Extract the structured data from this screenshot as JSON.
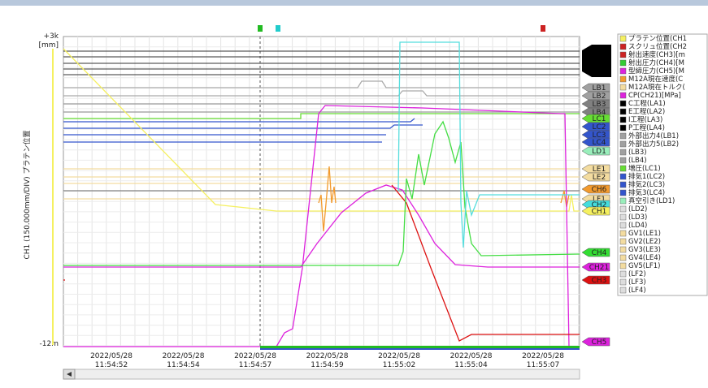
{
  "axis": {
    "top_label": "+3k",
    "unit": "[mm]",
    "bottom_label": "-12m",
    "y_title": "CH1 (150.000mm/DIV) プラテン位置"
  },
  "x_labels": [
    {
      "date": "2022/05/28",
      "time": "11:54:52"
    },
    {
      "date": "2022/05/28",
      "time": "11:54:54"
    },
    {
      "date": "2022/05/28",
      "time": "11:54:57"
    },
    {
      "date": "2022/05/28",
      "time": "11:54:59"
    },
    {
      "date": "2022/05/28",
      "time": "11:55:02"
    },
    {
      "date": "2022/05/28",
      "time": "11:55:04"
    },
    {
      "date": "2022/05/28",
      "time": "11:55:07"
    }
  ],
  "tags": [
    {
      "label": "LB1",
      "color": "#a0a0a0"
    },
    {
      "label": "LB2",
      "color": "#a0a0a0"
    },
    {
      "label": "LB3",
      "color": "#808080"
    },
    {
      "label": "LB4",
      "color": "#808080"
    },
    {
      "label": "LC1",
      "color": "#66dd33"
    },
    {
      "label": "LC2",
      "color": "#3355cc"
    },
    {
      "label": "LC3",
      "color": "#3355cc"
    },
    {
      "label": "LC4",
      "color": "#3355cc"
    },
    {
      "label": "LD1",
      "color": "#99eebb"
    },
    {
      "label": "LE1",
      "color": "#f3dca0"
    },
    {
      "label": "LE2",
      "color": "#f3dca0"
    },
    {
      "label": "CH6",
      "color": "#f29a2e"
    },
    {
      "label": "LF1",
      "color": "#f3dca0"
    },
    {
      "label": "CH2",
      "color": "#44dddd"
    },
    {
      "label": "CH1",
      "color": "#f5f060"
    },
    {
      "label": "CH4",
      "color": "#33dd33"
    },
    {
      "label": "CH21",
      "color": "#dd22dd"
    },
    {
      "label": "CH3",
      "color": "#dd1111"
    },
    {
      "label": "CH5",
      "color": "#dd22dd"
    }
  ],
  "legend": [
    {
      "label": "プラテン位置(CH1",
      "color": "#f5f060"
    },
    {
      "label": "スクリュ位置(CH2",
      "color": "#cc2222"
    },
    {
      "label": "射出速度(CH3)[m",
      "color": "#cc2222"
    },
    {
      "label": "射出圧力(CH4)[M",
      "color": "#33cc33"
    },
    {
      "label": "型締圧力(CH5)[M",
      "color": "#dd22dd"
    },
    {
      "label": "M12A現在速度(C",
      "color": "#f29a2e"
    },
    {
      "label": "M12A現在トルク(",
      "color": "#f3dca0"
    },
    {
      "label": "CP(CH21)[MPa]",
      "color": "#dd22dd"
    },
    {
      "label": "C工程(LA1)",
      "color": "#000000"
    },
    {
      "label": "E工程(LA2)",
      "color": "#000000"
    },
    {
      "label": "I工程(LA3)",
      "color": "#000000"
    },
    {
      "label": "P工程(LA4)",
      "color": "#000000"
    },
    {
      "label": "外部出力4(LB1)",
      "color": "#a0a0a0"
    },
    {
      "label": "外部出力5(LB2)",
      "color": "#a0a0a0"
    },
    {
      "label": "(LB3)",
      "color": "#a0a0a0"
    },
    {
      "label": "(LB4)",
      "color": "#a0a0a0"
    },
    {
      "label": "増圧(LC1)",
      "color": "#66dd33"
    },
    {
      "label": "排気1(LC2)",
      "color": "#3355cc"
    },
    {
      "label": "排気2(LC3)",
      "color": "#3355cc"
    },
    {
      "label": "排気3(LC4)",
      "color": "#3355cc"
    },
    {
      "label": "真空引き(LD1)",
      "color": "#99eebb"
    },
    {
      "label": "(LD2)",
      "color": "#dddddd"
    },
    {
      "label": "(LD3)",
      "color": "#dddddd"
    },
    {
      "label": "(LD4)",
      "color": "#dddddd"
    },
    {
      "label": "GV1(LE1)",
      "color": "#f3dca0"
    },
    {
      "label": "GV2(LE2)",
      "color": "#f3dca0"
    },
    {
      "label": "GV3(LE3)",
      "color": "#f3dca0"
    },
    {
      "label": "GV4(LE4)",
      "color": "#f3dca0"
    },
    {
      "label": "GV5(LF1)",
      "color": "#f3dca0"
    },
    {
      "label": "(LF2)",
      "color": "#dddddd"
    },
    {
      "label": "(LF3)",
      "color": "#dddddd"
    },
    {
      "label": "(LF4)",
      "color": "#dddddd"
    }
  ]
}
